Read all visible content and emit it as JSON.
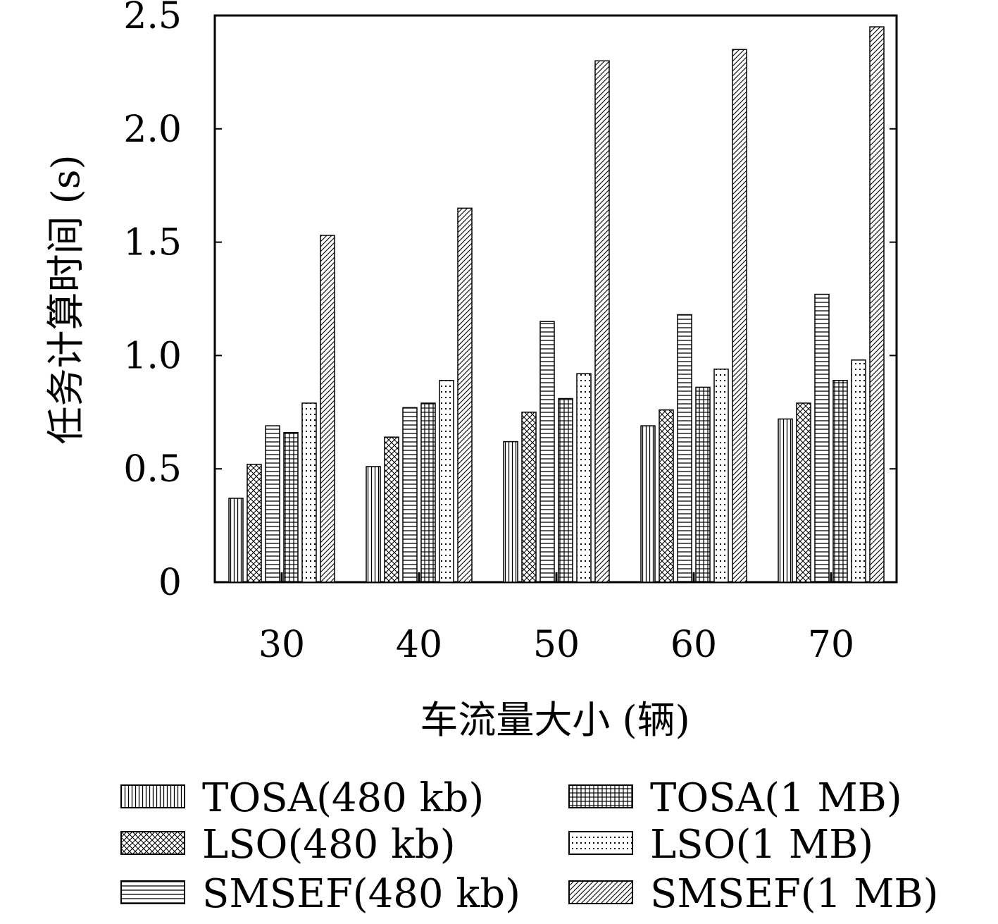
{
  "chart_data": {
    "type": "bar",
    "xlabel": "车流量大小 (辆)",
    "ylabel": "任务计算时间 (s)",
    "categories": [
      "30",
      "40",
      "50",
      "60",
      "70"
    ],
    "ylim": [
      0,
      2.5
    ],
    "yticks": [
      "0",
      "0.5",
      "1.0",
      "1.5",
      "2.0",
      "2.5"
    ],
    "legend_position": "bottom",
    "series": [
      {
        "name": "TOSA(480 kb)",
        "pattern": "vertical-lines",
        "values": [
          0.37,
          0.51,
          0.62,
          0.69,
          0.72
        ]
      },
      {
        "name": "LSO(480 kb)",
        "pattern": "crosshatch",
        "values": [
          0.52,
          0.64,
          0.75,
          0.76,
          0.79
        ]
      },
      {
        "name": "SMSEF(480 kb)",
        "pattern": "horizontal-lines",
        "values": [
          0.69,
          0.77,
          1.15,
          1.18,
          1.27
        ]
      },
      {
        "name": "TOSA(1 MB)",
        "pattern": "grid",
        "values": [
          0.66,
          0.79,
          0.81,
          0.86,
          0.89
        ]
      },
      {
        "name": "LSO(1 MB)",
        "pattern": "dots",
        "values": [
          0.79,
          0.89,
          0.92,
          0.94,
          0.98
        ]
      },
      {
        "name": "SMSEF(1 MB)",
        "pattern": "diagonal",
        "values": [
          1.53,
          1.65,
          2.3,
          2.35,
          2.45
        ]
      }
    ]
  }
}
